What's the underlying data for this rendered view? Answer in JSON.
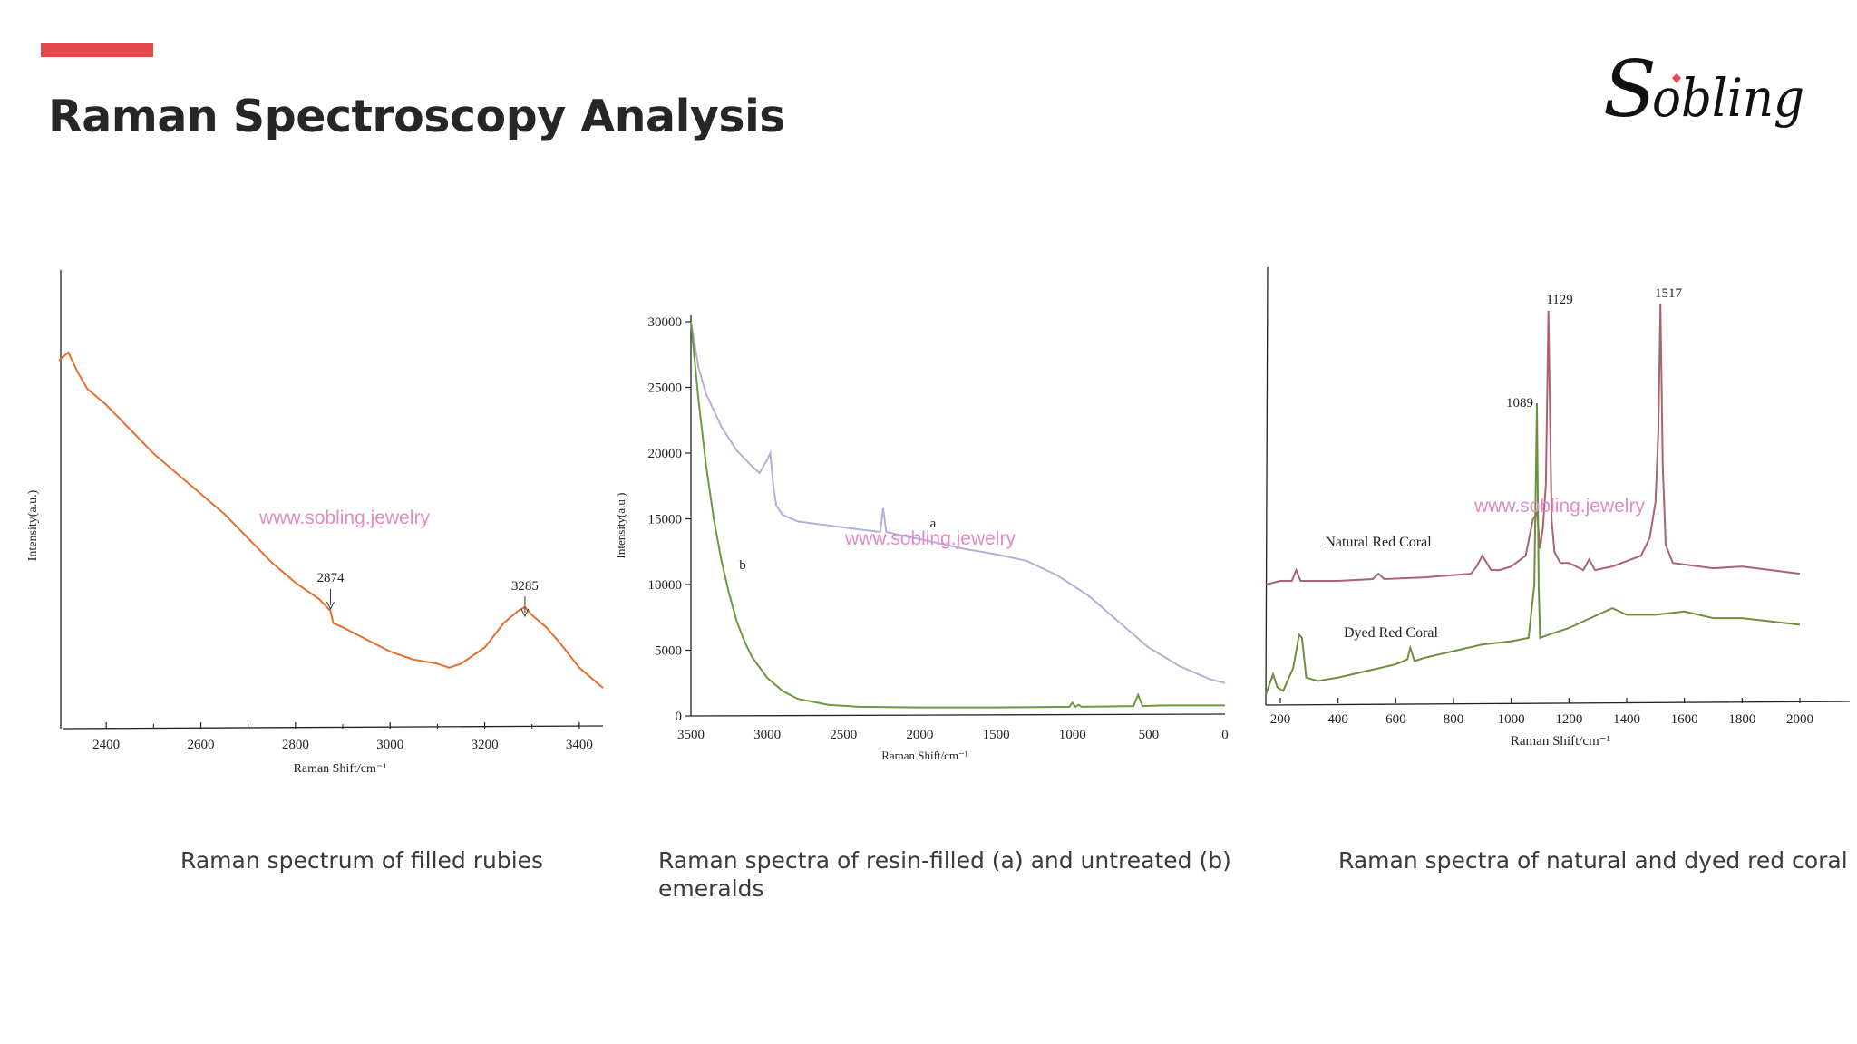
{
  "slide": {
    "title": "Raman Spectroscopy Analysis",
    "brand": "Sobling",
    "accent_color": "#e5484d"
  },
  "captions": [
    "Raman spectrum of filled rubies",
    "Raman spectra of resin-filled (a) and untreated (b) emeralds",
    "Raman spectra of natural and dyed red coral"
  ],
  "chart_data": [
    {
      "type": "line",
      "xlabel": "Raman Shift/cm⁻¹",
      "ylabel": "Intensity(a.u.)",
      "xlim": [
        2300,
        3450
      ],
      "xticks": [
        2400,
        2600,
        2800,
        3000,
        3200,
        3400
      ],
      "watermark": "www.sobling.jewelry",
      "annotations": [
        {
          "label": "2874",
          "x": 2874
        },
        {
          "label": "3285",
          "x": 3285
        }
      ],
      "series": [
        {
          "color": "#e3702e",
          "x": [
            2300,
            2320,
            2340,
            2360,
            2400,
            2450,
            2500,
            2550,
            2600,
            2650,
            2700,
            2750,
            2800,
            2850,
            2874,
            2880,
            2900,
            2950,
            3000,
            3050,
            3100,
            3125,
            3150,
            3200,
            3240,
            3270,
            3285,
            3300,
            3330,
            3360,
            3400,
            3450
          ],
          "y": [
            0.83,
            0.85,
            0.8,
            0.76,
            0.72,
            0.66,
            0.6,
            0.55,
            0.5,
            0.45,
            0.39,
            0.33,
            0.28,
            0.24,
            0.21,
            0.18,
            0.17,
            0.14,
            0.11,
            0.09,
            0.08,
            0.07,
            0.08,
            0.12,
            0.18,
            0.21,
            0.22,
            0.2,
            0.17,
            0.13,
            0.07,
            0.02
          ]
        }
      ]
    },
    {
      "type": "line",
      "xlabel": "Raman Shift/cm⁻¹",
      "ylabel": "Intensity(a.u.)",
      "xlim": [
        3500,
        0
      ],
      "ylim": [
        0,
        30000
      ],
      "xticks": [
        3500,
        3000,
        2500,
        2000,
        1500,
        1000,
        500,
        0
      ],
      "yticks": [
        0,
        5000,
        10000,
        15000,
        20000,
        25000,
        30000
      ],
      "watermark": "www.sobling.jewelry",
      "series": [
        {
          "name": "a",
          "color": "#b3b0d8",
          "x": [
            3500,
            3450,
            3400,
            3300,
            3200,
            3100,
            3050,
            3000,
            2980,
            2960,
            2940,
            2900,
            2800,
            2600,
            2400,
            2260,
            2240,
            2220,
            2100,
            1900,
            1700,
            1500,
            1300,
            1100,
            900,
            700,
            500,
            300,
            100,
            0
          ],
          "y": [
            30000,
            26500,
            24500,
            22000,
            20200,
            19000,
            18500,
            19500,
            20000,
            17500,
            16000,
            15300,
            14800,
            14500,
            14200,
            14000,
            15800,
            14000,
            13700,
            13200,
            12700,
            12300,
            11800,
            10700,
            9200,
            7200,
            5200,
            3800,
            2800,
            2500
          ]
        },
        {
          "name": "b",
          "color": "#6a9a3e",
          "x": [
            3500,
            3450,
            3400,
            3350,
            3300,
            3250,
            3200,
            3150,
            3100,
            3000,
            2900,
            2800,
            2600,
            2400,
            2000,
            1500,
            1020,
            1000,
            980,
            960,
            940,
            600,
            570,
            540,
            400,
            300,
            0
          ],
          "y": [
            30000,
            24000,
            19000,
            15000,
            11800,
            9300,
            7200,
            5700,
            4500,
            2900,
            1900,
            1300,
            850,
            700,
            650,
            650,
            700,
            1000,
            700,
            850,
            700,
            750,
            1600,
            750,
            800,
            800,
            800
          ]
        }
      ]
    },
    {
      "type": "line",
      "xlabel": "Raman Shift/cm⁻¹",
      "xlim": [
        150,
        2050
      ],
      "xticks": [
        200,
        400,
        600,
        800,
        1000,
        1200,
        1400,
        1600,
        1800,
        2000
      ],
      "watermark": "www.sobling.jewelry",
      "peak_labels": [
        "1129",
        "1517",
        "1089"
      ],
      "series": [
        {
          "name": "Natural Red Coral",
          "color": "#a86470",
          "x": [
            150,
            200,
            240,
            255,
            270,
            300,
            400,
            520,
            540,
            560,
            700,
            860,
            880,
            900,
            930,
            960,
            1000,
            1050,
            1075,
            1089,
            1100,
            1110,
            1120,
            1129,
            1140,
            1150,
            1170,
            1200,
            1250,
            1270,
            1290,
            1350,
            1450,
            1480,
            1500,
            1510,
            1517,
            1525,
            1535,
            1560,
            1700,
            1800,
            2000
          ],
          "y": [
            0.22,
            0.23,
            0.23,
            0.26,
            0.23,
            0.23,
            0.23,
            0.235,
            0.25,
            0.235,
            0.24,
            0.25,
            0.27,
            0.3,
            0.26,
            0.26,
            0.27,
            0.3,
            0.4,
            0.42,
            0.32,
            0.38,
            0.5,
            0.98,
            0.4,
            0.31,
            0.28,
            0.28,
            0.26,
            0.29,
            0.26,
            0.27,
            0.3,
            0.35,
            0.45,
            0.65,
            1.0,
            0.55,
            0.33,
            0.28,
            0.265,
            0.27,
            0.25
          ]
        },
        {
          "name": "Dyed Red Coral",
          "color": "#6e8f3c",
          "x": [
            150,
            175,
            190,
            210,
            245,
            265,
            275,
            290,
            330,
            400,
            500,
            600,
            640,
            650,
            665,
            700,
            800,
            900,
            1000,
            1060,
            1080,
            1089,
            1095,
            1100,
            1130,
            1200,
            1300,
            1350,
            1400,
            1500,
            1600,
            1700,
            1800,
            1900,
            2000
          ],
          "y": [
            -0.03,
            0.03,
            -0.01,
            -0.02,
            0.05,
            0.15,
            0.14,
            0.02,
            0.01,
            0.02,
            0.04,
            0.06,
            0.075,
            0.11,
            0.07,
            0.08,
            0.1,
            0.12,
            0.13,
            0.14,
            0.3,
            0.85,
            0.3,
            0.14,
            0.15,
            0.17,
            0.21,
            0.23,
            0.21,
            0.21,
            0.22,
            0.2,
            0.2,
            0.19,
            0.18
          ]
        }
      ]
    }
  ]
}
